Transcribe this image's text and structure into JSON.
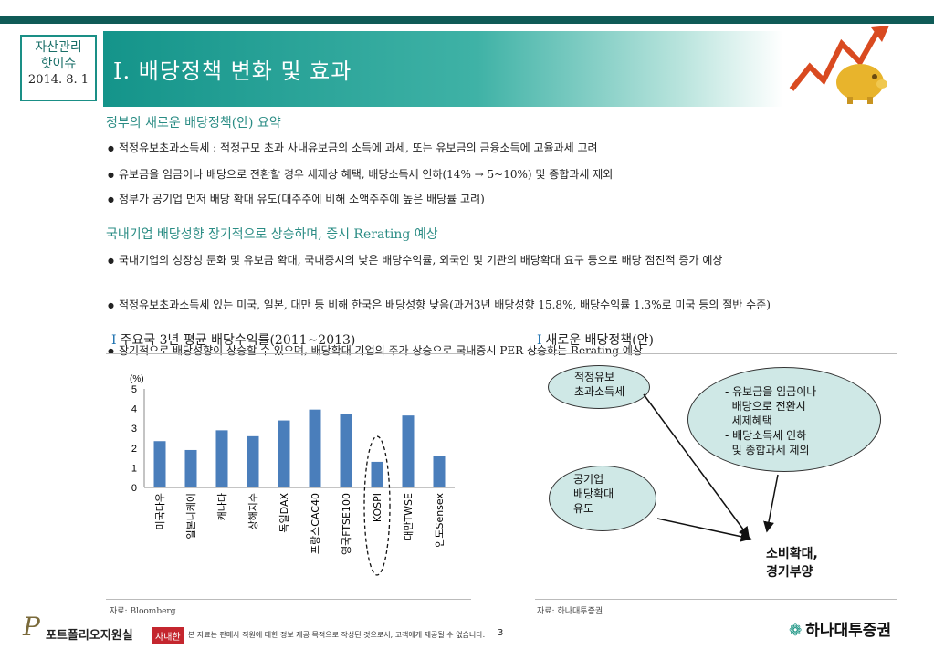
{
  "header": {
    "side_label_line1": "자산관리",
    "side_label_line2": "핫이슈",
    "date": "2014. 8. 1",
    "title": "I. 배당정책 변화 및 효과"
  },
  "section1": {
    "heading": "정부의 새로운 배당정책(안) 요약",
    "bullets": [
      "적정유보초과소득세 : 적정규모 초과 사내유보금의 소득에 과세, 또는 유보금의 금융소득에 고율과세 고려",
      "유보금을 임금이나 배당으로 전환할 경우 세제상 혜택,  배당소득세 인하(14% → 5~10%) 및 종합과세 제외",
      "정부가 공기업 먼저 배당 확대 유도(대주주에 비해 소액주주에 높은 배당률 고려)"
    ]
  },
  "section2": {
    "heading": "국내기업 배당성향 장기적으로 상승하며, 증시 Rerating 예상",
    "bullets": [
      "국내기업의 성장성 둔화 및 유보금 확대, 국내증시의 낮은 배당수익률, 외국인 및 기관의 배당확대 요구 등으로 배당 점진적 증가 예상",
      "적정유보초과소득세 있는 미국, 일본, 대만 등 비해 한국은 배당성향 낮음(과거3년 배당성향 15.8%, 배당수익률 1.3%로 미국 등의 절반 수준)",
      "장기적으로 배당성향이 상승할 수 있으며, 배당확대 기업의 주가 상승으로 국내증시 PER 상승하는 Rerating 예상"
    ]
  },
  "chart_left": {
    "title": "주요국 3년 평균 배당수익률(2011~2013)",
    "source": "자료: Bloomberg"
  },
  "chart_right": {
    "title": "새로운 배당정책(안)",
    "source": "자료: 하나대투증권",
    "bubble_top": "적정유보\n초과소득세",
    "bubble_mid": "공기업\n배당확대\n유도",
    "bubble_big": "- 유보금을 임금이나\n  배당으로 전환시\n  세제혜택\n- 배당소득세 인하\n  및 종합과세 제외",
    "result": "소비확대,\n경기부양"
  },
  "chart_data": {
    "type": "bar",
    "title": "",
    "ylabel": "(%)",
    "xlabel": "",
    "ylim": [
      0,
      5
    ],
    "yticks": [
      "0",
      "1",
      "2",
      "3",
      "4",
      "5"
    ],
    "categories": [
      "미국다우",
      "일본니케이",
      "캐나다",
      "상해지수",
      "독일DAX",
      "프랑스CAC40",
      "영국FTSE100",
      "KOSPI",
      "대만TWSE",
      "인도Sensex"
    ],
    "values": [
      2.35,
      1.9,
      2.9,
      2.6,
      3.4,
      3.95,
      3.75,
      1.3,
      3.65,
      1.6
    ],
    "bar_color": "#4a7ebb",
    "highlight": "KOSPI"
  },
  "footer": {
    "brand": "포트폴리오지원실",
    "badge": "사내한",
    "disclaimer": "본 자료는 판매사 직원에 대한 정보 제공 목적으로 작성된 것으로서, 고객에게 제공될 수 없습니다.",
    "page": "3",
    "company": "하나대투증권"
  },
  "colors": {
    "accent": "#14948a",
    "dark_bar": "#0f5b57"
  }
}
